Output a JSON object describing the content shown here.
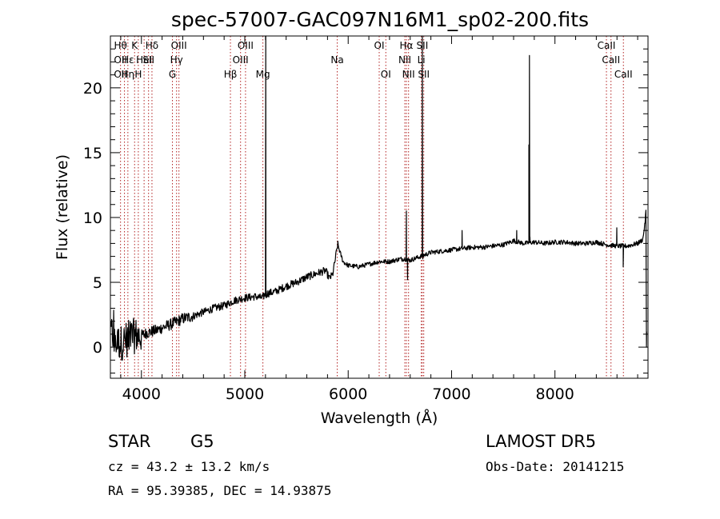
{
  "chart_data": {
    "type": "line",
    "title": "spec-57007-GAC097N16M1_sp02-200.fits",
    "xlabel": "Wavelength (Å)",
    "ylabel": "Flux (relative)",
    "xlim": [
      3700,
      8900
    ],
    "ylim": [
      -2.4,
      24
    ],
    "x_ticks": [
      4000,
      5000,
      6000,
      7000,
      8000
    ],
    "y_ticks": [
      0,
      5,
      10,
      15,
      20
    ],
    "grid": false,
    "line_color": "#000000",
    "marker_line_color": "#b22222",
    "spectrum_anchors": [
      [
        3700,
        1.2
      ],
      [
        3760,
        0.5
      ],
      [
        3800,
        0.3
      ],
      [
        3860,
        0.6
      ],
      [
        3900,
        0.8
      ],
      [
        3950,
        0.9
      ],
      [
        4000,
        0.9
      ],
      [
        4050,
        1.1
      ],
      [
        4100,
        1.2
      ],
      [
        4150,
        1.3
      ],
      [
        4200,
        1.5
      ],
      [
        4300,
        1.8
      ],
      [
        4400,
        2.2
      ],
      [
        4500,
        2.4
      ],
      [
        4600,
        2.7
      ],
      [
        4700,
        3.0
      ],
      [
        4800,
        3.2
      ],
      [
        4900,
        3.6
      ],
      [
        5000,
        3.8
      ],
      [
        5100,
        3.9
      ],
      [
        5170,
        3.8
      ],
      [
        5200,
        4.1
      ],
      [
        5300,
        4.3
      ],
      [
        5400,
        4.7
      ],
      [
        5500,
        5.0
      ],
      [
        5600,
        5.4
      ],
      [
        5700,
        5.7
      ],
      [
        5780,
        5.9
      ],
      [
        5820,
        5.3
      ],
      [
        5850,
        5.6
      ],
      [
        5880,
        7.0
      ],
      [
        5900,
        8.0
      ],
      [
        5910,
        7.6
      ],
      [
        5950,
        6.6
      ],
      [
        6000,
        6.3
      ],
      [
        6100,
        6.2
      ],
      [
        6200,
        6.4
      ],
      [
        6300,
        6.6
      ],
      [
        6400,
        6.6
      ],
      [
        6500,
        6.8
      ],
      [
        6550,
        6.8
      ],
      [
        6600,
        6.7
      ],
      [
        6700,
        7.0
      ],
      [
        6800,
        7.3
      ],
      [
        6900,
        7.4
      ],
      [
        7000,
        7.5
      ],
      [
        7100,
        7.6
      ],
      [
        7200,
        7.7
      ],
      [
        7300,
        7.7
      ],
      [
        7400,
        7.8
      ],
      [
        7500,
        7.9
      ],
      [
        7600,
        8.2
      ],
      [
        7700,
        8.0
      ],
      [
        7800,
        8.1
      ],
      [
        7900,
        8.0
      ],
      [
        8000,
        8.1
      ],
      [
        8100,
        8.1
      ],
      [
        8200,
        8.0
      ],
      [
        8300,
        8.0
      ],
      [
        8400,
        8.1
      ],
      [
        8500,
        7.9
      ],
      [
        8600,
        7.8
      ],
      [
        8700,
        7.8
      ],
      [
        8800,
        8.0
      ],
      [
        8850,
        8.3
      ],
      [
        8870,
        9.5
      ],
      [
        8880,
        10.5
      ]
    ],
    "spikes": [
      [
        5203,
        24.0
      ],
      [
        5207,
        3.8
      ],
      [
        6563,
        10.5
      ],
      [
        6575,
        5.2
      ],
      [
        6717,
        24.0
      ],
      [
        6722,
        6.8
      ],
      [
        7748,
        15.6
      ],
      [
        7753,
        22.5
      ],
      [
        7758,
        8.5
      ],
      [
        7102,
        9.0
      ],
      [
        7630,
        9.0
      ],
      [
        8598,
        9.2
      ],
      [
        8660,
        6.2
      ]
    ],
    "spectral_lines": [
      {
        "x": 3798,
        "top": "Hθ",
        "mid": "OII",
        "bot": "OII"
      },
      {
        "x": 3836,
        "top": "",
        "mid": "",
        "bot": ""
      },
      {
        "x": 3869,
        "top": "",
        "mid": "Hε",
        "bot": "Hη"
      },
      {
        "x": 3934,
        "top": "K",
        "mid": "",
        "bot": ""
      },
      {
        "x": 3970,
        "top": "",
        "mid": "",
        "bot": "H"
      },
      {
        "x": 4026,
        "top": "",
        "mid": "HeI",
        "bot": ""
      },
      {
        "x": 4069,
        "top": "",
        "mid": "SII",
        "bot": ""
      },
      {
        "x": 4102,
        "top": "Hδ",
        "mid": "",
        "bot": ""
      },
      {
        "x": 4300,
        "top": "",
        "mid": "",
        "bot": "G"
      },
      {
        "x": 4340,
        "top": "",
        "mid": "Hγ",
        "bot": ""
      },
      {
        "x": 4363,
        "top": "OIII",
        "mid": "",
        "bot": ""
      },
      {
        "x": 4861,
        "top": "",
        "mid": "",
        "bot": "Hβ"
      },
      {
        "x": 4959,
        "top": "",
        "mid": "OIII",
        "bot": ""
      },
      {
        "x": 5007,
        "top": "OIII",
        "mid": "",
        "bot": ""
      },
      {
        "x": 5175,
        "top": "",
        "mid": "",
        "bot": "Mg"
      },
      {
        "x": 5894,
        "top": "",
        "mid": "Na",
        "bot": ""
      },
      {
        "x": 6300,
        "top": "OI",
        "mid": "",
        "bot": ""
      },
      {
        "x": 6364,
        "top": "",
        "mid": "",
        "bot": "OI"
      },
      {
        "x": 6548,
        "top": "",
        "mid": "NII",
        "bot": ""
      },
      {
        "x": 6563,
        "top": "Hα",
        "mid": "",
        "bot": ""
      },
      {
        "x": 6584,
        "top": "",
        "mid": "",
        "bot": "NII"
      },
      {
        "x": 6707,
        "top": "",
        "mid": "Li",
        "bot": ""
      },
      {
        "x": 6717,
        "top": "SII",
        "mid": "",
        "bot": ""
      },
      {
        "x": 6731,
        "top": "",
        "mid": "",
        "bot": "SII"
      },
      {
        "x": 8498,
        "top": "CaII",
        "mid": "",
        "bot": ""
      },
      {
        "x": 8542,
        "top": "",
        "mid": "CaII",
        "bot": ""
      },
      {
        "x": 8662,
        "top": "",
        "mid": "",
        "bot": "CaII"
      }
    ]
  },
  "info": {
    "class": "STAR",
    "subclass": "G5",
    "survey": "LAMOST DR5",
    "cz": "cz = 43.2 ± 13.2 km/s",
    "radec": "RA =  95.39385, DEC =  14.93875",
    "obsdate": "Obs-Date: 20141215"
  }
}
